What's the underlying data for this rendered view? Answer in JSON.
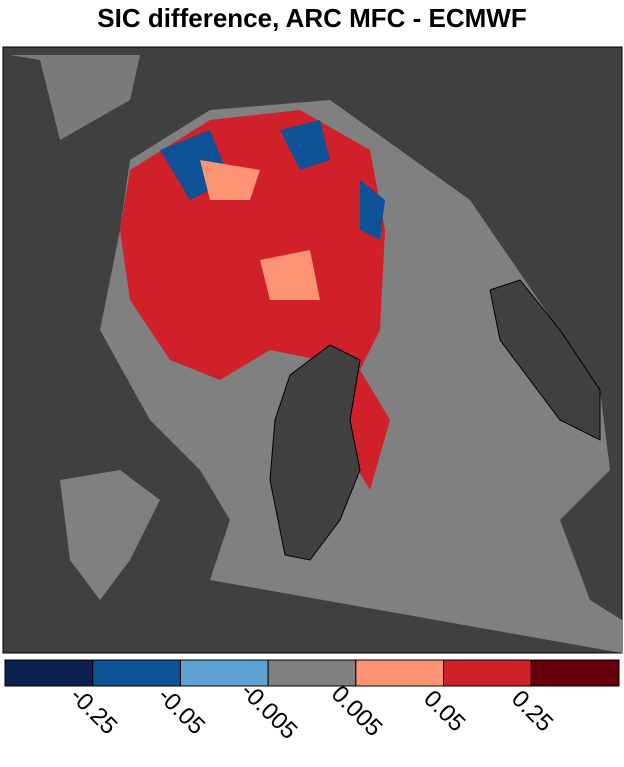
{
  "title": "SIC difference, ARC MFC - ECMWF",
  "colorbar": {
    "colors": [
      "#0b2150",
      "#0d5196",
      "#5da2d3",
      "#808080",
      "#fc9373",
      "#d0202a",
      "#67000d"
    ],
    "ticks": [
      -0.25,
      -0.05,
      -0.005,
      0.005,
      0.05,
      0.25
    ]
  }
}
